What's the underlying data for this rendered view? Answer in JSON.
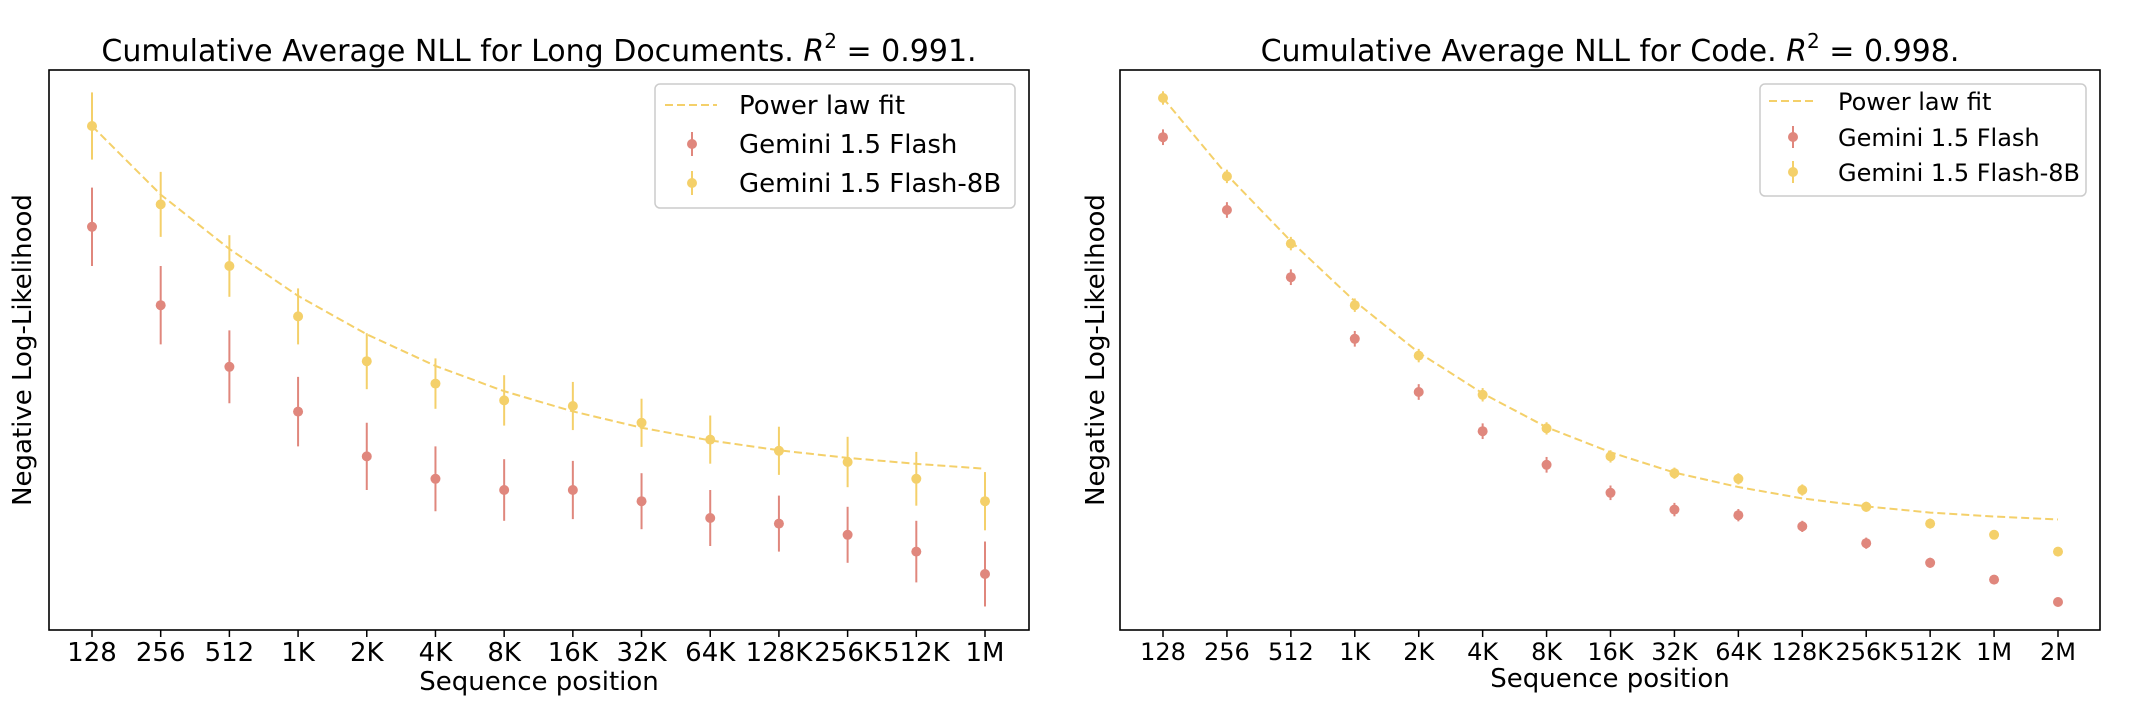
{
  "chart_data": [
    {
      "type": "scatter",
      "title": "Cumulative Average NLL for Long Documents. ",
      "title_r2": "R",
      "title_r2_exp": "2",
      "title_r2_value": " = 0.991.",
      "xlabel": "Sequence position",
      "ylabel": "Negative Log-Likelihood",
      "categories": [
        "128",
        "256",
        "512",
        "1K",
        "2K",
        "4K",
        "8K",
        "16K",
        "32K",
        "64K",
        "128K",
        "256K",
        "512K",
        "1M"
      ],
      "ylim": [
        0,
        1
      ],
      "grid": false,
      "legend_position": "top-right",
      "legend": {
        "fit": "Power law fit",
        "series_a": "Gemini 1.5 Flash",
        "series_b": "Gemini 1.5 Flash-8B"
      },
      "series": [
        {
          "name": "Gemini 1.5 Flash",
          "color": "#e0877d",
          "values": [
            0.72,
            0.58,
            0.47,
            0.39,
            0.31,
            0.27,
            0.25,
            0.25,
            0.23,
            0.2,
            0.19,
            0.17,
            0.14,
            0.1
          ],
          "errors": [
            0.07,
            0.07,
            0.065,
            0.062,
            0.06,
            0.058,
            0.055,
            0.052,
            0.05,
            0.05,
            0.05,
            0.05,
            0.055,
            0.058
          ]
        },
        {
          "name": "Gemini 1.5 Flash-8B",
          "color": "#f4d06a",
          "values": [
            0.9,
            0.76,
            0.65,
            0.56,
            0.48,
            0.44,
            0.41,
            0.4,
            0.37,
            0.34,
            0.32,
            0.3,
            0.27,
            0.23
          ],
          "errors": [
            0.06,
            0.058,
            0.055,
            0.05,
            0.05,
            0.045,
            0.045,
            0.043,
            0.043,
            0.043,
            0.043,
            0.045,
            0.048,
            0.052
          ]
        }
      ],
      "fit": {
        "name": "Power law fit",
        "color": "#f4d06a",
        "values": [
          0.9,
          0.7775,
          0.6805,
          0.5966,
          0.528,
          0.4716,
          0.4264,
          0.3904,
          0.3612,
          0.3385,
          0.3209,
          0.3074,
          0.2967,
          0.288
        ]
      }
    },
    {
      "type": "scatter",
      "title": "Cumulative Average NLL for Code. ",
      "title_r2": "R",
      "title_r2_exp": "2",
      "title_r2_value": " = 0.998.",
      "xlabel": "Sequence position",
      "ylabel": "Negative Log-Likelihood",
      "categories": [
        "128",
        "256",
        "512",
        "1K",
        "2K",
        "4K",
        "8K",
        "16K",
        "32K",
        "64K",
        "128K",
        "256K",
        "512K",
        "1M",
        "2M"
      ],
      "ylim": [
        0,
        1
      ],
      "grid": false,
      "legend_position": "top-right",
      "legend": {
        "fit": "Power law fit",
        "series_a": "Gemini 1.5 Flash",
        "series_b": "Gemini 1.5 Flash-8B"
      },
      "series": [
        {
          "name": "Gemini 1.5 Flash",
          "color": "#e0877d",
          "values": [
            0.88,
            0.75,
            0.63,
            0.52,
            0.425,
            0.355,
            0.295,
            0.245,
            0.215,
            0.205,
            0.185,
            0.155,
            0.12,
            0.09,
            0.05
          ],
          "errors": [
            0.014,
            0.014,
            0.014,
            0.014,
            0.014,
            0.014,
            0.014,
            0.013,
            0.012,
            0.011,
            0.01,
            0.01,
            0.009,
            0.008,
            0.007
          ]
        },
        {
          "name": "Gemini 1.5 Flash-8B",
          "color": "#f4d06a",
          "values": [
            0.95,
            0.81,
            0.69,
            0.58,
            0.49,
            0.42,
            0.36,
            0.31,
            0.28,
            0.27,
            0.25,
            0.22,
            0.19,
            0.17,
            0.14
          ],
          "errors": [
            0.012,
            0.012,
            0.012,
            0.012,
            0.012,
            0.012,
            0.011,
            0.011,
            0.01,
            0.01,
            0.01,
            0.009,
            0.009,
            0.008,
            0.008
          ]
        }
      ],
      "fit": {
        "name": "Power law fit",
        "color": "#f4d06a",
        "values": [
          0.95,
          0.8128,
          0.6943,
          0.587,
          0.4954,
          0.4226,
          0.3621,
          0.3174,
          0.2811,
          0.2553,
          0.235,
          0.2208,
          0.2097,
          0.2026,
          0.1974
        ]
      }
    }
  ]
}
